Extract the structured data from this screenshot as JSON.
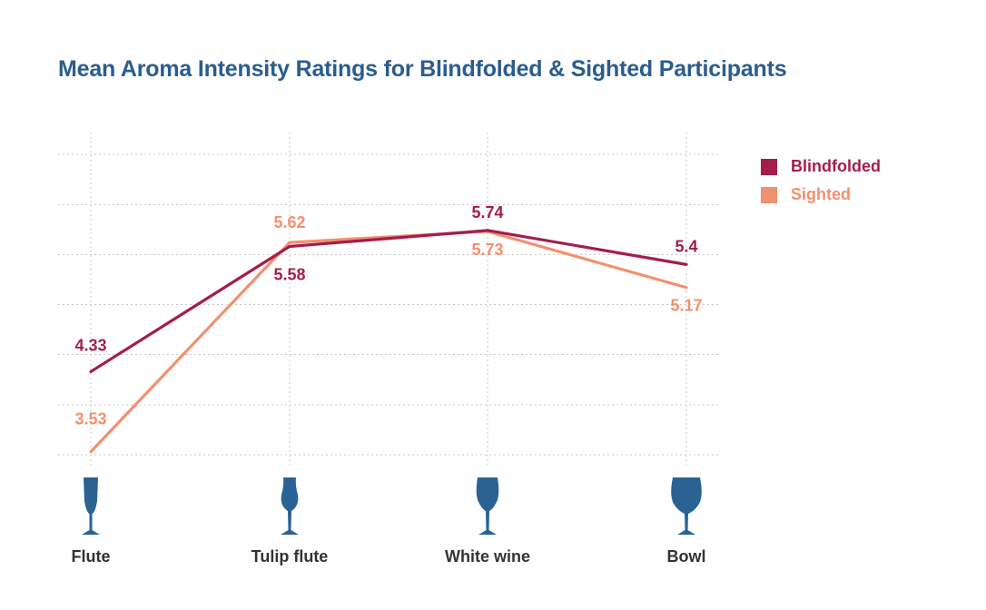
{
  "title": "Mean Aroma Intensity Ratings for Blindfolded & Sighted Participants",
  "colors": {
    "title": "#2a5d8f",
    "blindfolded": "#a41d4b",
    "sighted": "#f3906d",
    "glass": "#2a6294",
    "category_text": "#333333",
    "grid": "#c8c8c8"
  },
  "legend": [
    {
      "label": "Blindfolded",
      "color": "#a41d4b"
    },
    {
      "label": "Sighted",
      "color": "#f3906d"
    }
  ],
  "icons": [
    "flute-glass-icon",
    "tulip-flute-glass-icon",
    "white-wine-glass-icon",
    "bowl-glass-icon"
  ],
  "chart_data": {
    "type": "line",
    "title": "Mean Aroma Intensity Ratings for Blindfolded & Sighted Participants",
    "categories": [
      "Flute",
      "Tulip flute",
      "White wine",
      "Bowl"
    ],
    "series": [
      {
        "name": "Blindfolded",
        "values": [
          4.33,
          5.58,
          5.74,
          5.4
        ],
        "labels": [
          "4.33",
          "5.58",
          "5.74",
          "5.4"
        ]
      },
      {
        "name": "Sighted",
        "values": [
          3.53,
          5.62,
          5.73,
          5.17
        ],
        "labels": [
          "3.53",
          "5.62",
          "5.73",
          "5.17"
        ]
      }
    ],
    "ylim": [
      3.5,
      6.5
    ],
    "grid": true,
    "legend_position": "right",
    "y_ticks_shown": false
  }
}
